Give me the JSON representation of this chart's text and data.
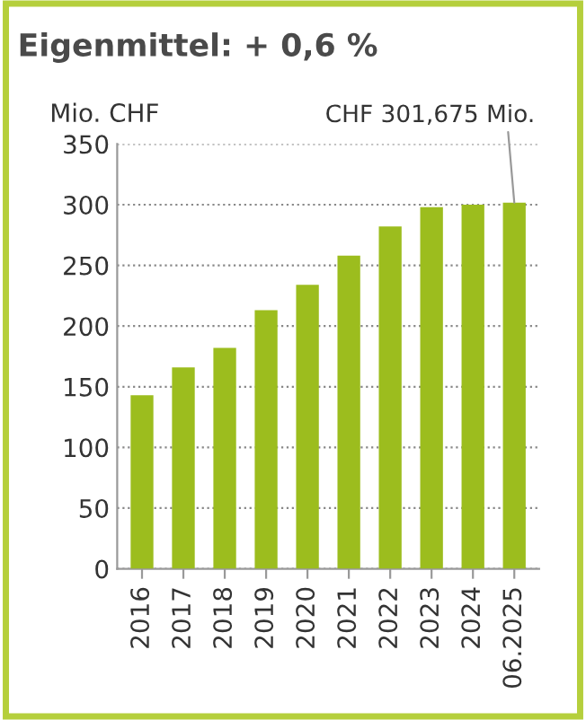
{
  "chart_data": {
    "type": "bar",
    "title": "Eigenmittel: + 0,6 %",
    "ylabel": "Mio. CHF",
    "categories": [
      "2016",
      "2017",
      "2018",
      "2019",
      "2020",
      "2021",
      "2022",
      "2023",
      "2024",
      "06.2025"
    ],
    "values": [
      143,
      166,
      182,
      213,
      234,
      258,
      282,
      298,
      300,
      301.675
    ],
    "color": "#9cbd1e",
    "ylim": [
      0,
      350
    ],
    "yticks": [
      0,
      50,
      100,
      150,
      200,
      250,
      300,
      350
    ],
    "grid": "y",
    "annotations": [
      {
        "text": "CHF 301,675 Mio.",
        "x": "06.2025",
        "y": 301.675
      }
    ]
  }
}
